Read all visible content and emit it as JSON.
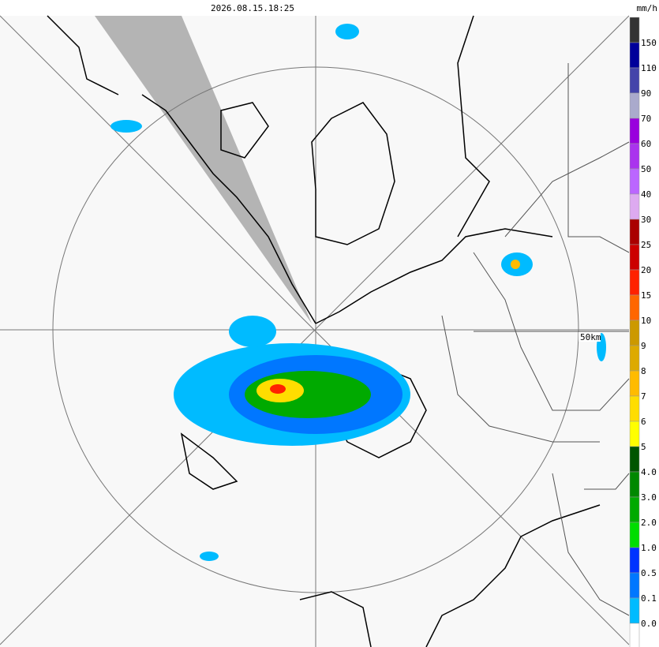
{
  "header": {
    "timestamp": "2026.08.15.18:25",
    "unit": "mm/h"
  },
  "map": {
    "range_label": "50km"
  },
  "legend": {
    "labels": [
      "150",
      "110",
      "90",
      "70",
      "60",
      "50",
      "40",
      "30",
      "25",
      "20",
      "15",
      "10",
      "9",
      "8",
      "7",
      "6",
      "5",
      "4.0",
      "3.0",
      "2.0",
      "1.0",
      "0.5",
      "0.1",
      "0.0"
    ],
    "colors": [
      "#333333",
      "#00009a",
      "#4444aa",
      "#aaaacc",
      "#9900dd",
      "#aa33ee",
      "#bb66ff",
      "#ddaaf0",
      "#aa0000",
      "#cc0000",
      "#ff2200",
      "#ff6600",
      "#cc9900",
      "#ddaa00",
      "#ffbb00",
      "#ffdd00",
      "#ffff00",
      "#005500",
      "#008800",
      "#00aa00",
      "#00dd00",
      "#0033ff",
      "#0077ff",
      "#00bbff",
      "#ffffff"
    ]
  }
}
